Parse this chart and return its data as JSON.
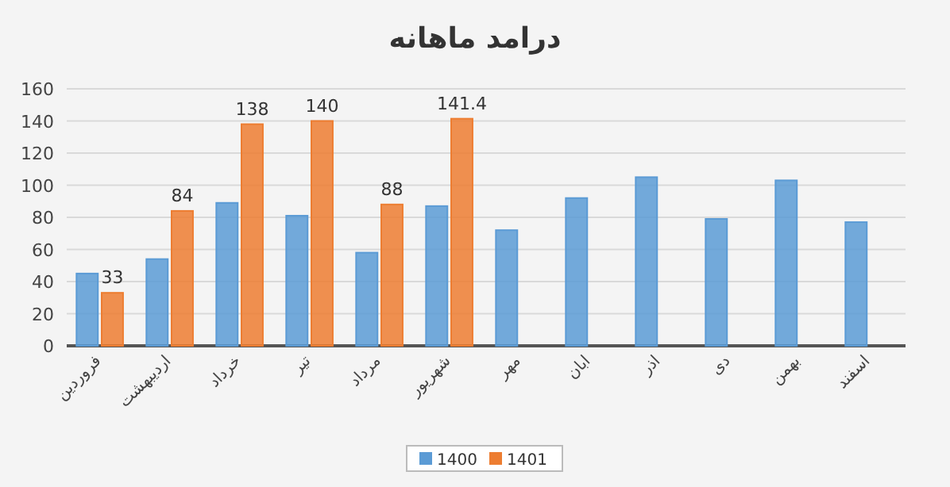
{
  "chart_data": {
    "type": "bar",
    "title": "درامد ماهانه",
    "categories": [
      "فروردین",
      "اردیبهشت",
      "خرداد",
      "تیر",
      "مرداد",
      "شهریور",
      "مهر",
      "ابان",
      "اذر",
      "دی",
      "بهمن",
      "اسفند"
    ],
    "series": [
      {
        "name": "1400",
        "color": "#5b9bd5",
        "values": [
          45,
          54,
          89,
          81,
          58,
          87,
          72,
          92,
          105,
          79,
          103,
          77
        ]
      },
      {
        "name": "1401",
        "color": "#ed7d31",
        "values": [
          33,
          84,
          138,
          140,
          88,
          141.4,
          null,
          null,
          null,
          null,
          null,
          null
        ],
        "value_labels": [
          "33",
          "84",
          "138",
          "140",
          "88",
          "141.4",
          null,
          null,
          null,
          null,
          null,
          null
        ]
      }
    ],
    "ylim": [
      0,
      160
    ],
    "yticks": [
      0,
      20,
      40,
      60,
      80,
      100,
      120,
      140,
      160
    ],
    "grid": "y",
    "legend": "bottom"
  }
}
